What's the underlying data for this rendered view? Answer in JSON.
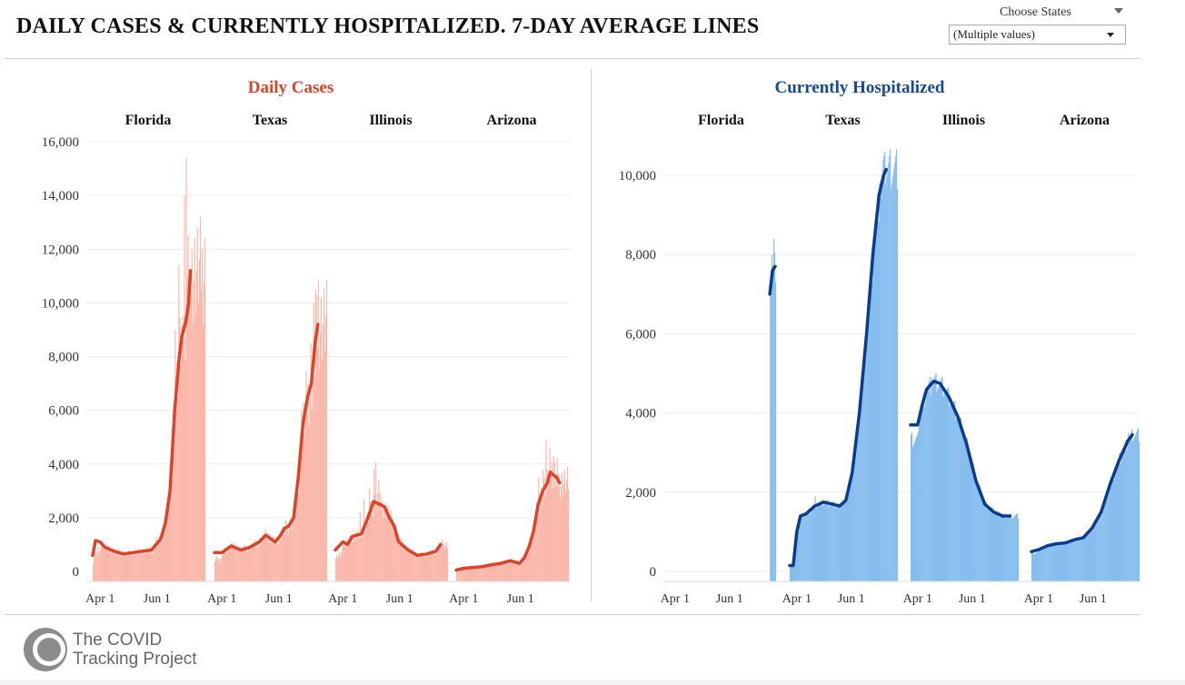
{
  "page": {
    "title": "DAILY CASES & CURRENTLY HOSPITALIZED. 7-DAY AVERAGE LINES"
  },
  "filter": {
    "label": "Choose States",
    "value": "(Multiple values)"
  },
  "footer": {
    "logo_line1": "The COVID",
    "logo_line2": "Tracking Project"
  },
  "colors": {
    "cases_title": "#d9442b",
    "cases_bar": "#f9b8aa",
    "cases_line": "#d9442b",
    "hosp_title": "#174a94",
    "hosp_bar": "#86bdee",
    "hosp_line": "#0b3b8c"
  },
  "chart_data": [
    {
      "type": "bar",
      "title": "Daily Cases",
      "facets": [
        "Florida",
        "Texas",
        "Illinois",
        "Arizona"
      ],
      "x_tick_labels": [
        "Apr 1",
        "Jun 1"
      ],
      "y_tick_labels": [
        "0",
        "2,000",
        "4,000",
        "6,000",
        "8,000",
        "10,000",
        "12,000",
        "14,000",
        "16,000"
      ],
      "y_ticks": [
        0,
        2000,
        4000,
        6000,
        8000,
        10000,
        12000,
        14000,
        16000
      ],
      "ylim": [
        0,
        16000
      ],
      "xlim_days": [
        -10,
        113
      ],
      "x_tick_days": [
        0,
        61
      ],
      "grid": true,
      "series": [
        {
          "name": "Florida",
          "days": [
            -8,
            112
          ],
          "line": [
            [
              -8,
              600
            ],
            [
              -5,
              1150
            ],
            [
              0,
              1100
            ],
            [
              5,
              900
            ],
            [
              15,
              750
            ],
            [
              25,
              650
            ],
            [
              35,
              700
            ],
            [
              45,
              750
            ],
            [
              55,
              800
            ],
            [
              60,
              1000
            ],
            [
              65,
              1200
            ],
            [
              70,
              1800
            ],
            [
              75,
              3000
            ],
            [
              80,
              6000
            ],
            [
              85,
              8000
            ],
            [
              88,
              8800
            ],
            [
              92,
              9300
            ],
            [
              95,
              10000
            ],
            [
              97,
              11200
            ]
          ],
          "daily": [
            [
              60,
              1300
            ],
            [
              70,
              2000
            ],
            [
              75,
              3500
            ],
            [
              80,
              9000
            ],
            [
              84,
              11400
            ],
            [
              88,
              9500
            ],
            [
              90,
              14000
            ],
            [
              92,
              15400
            ],
            [
              94,
              12500
            ],
            [
              96,
              10000
            ]
          ]
        },
        {
          "name": "Texas",
          "days": [
            -8,
            112
          ],
          "line": [
            [
              -8,
              700
            ],
            [
              0,
              700
            ],
            [
              10,
              950
            ],
            [
              20,
              800
            ],
            [
              30,
              900
            ],
            [
              40,
              1100
            ],
            [
              47,
              1350
            ],
            [
              53,
              1200
            ],
            [
              57,
              1100
            ],
            [
              62,
              1300
            ],
            [
              67,
              1600
            ],
            [
              72,
              1700
            ],
            [
              77,
              2000
            ],
            [
              82,
              3500
            ],
            [
              87,
              5500
            ],
            [
              92,
              6500
            ],
            [
              96,
              7000
            ],
            [
              100,
              8500
            ],
            [
              103,
              9200
            ]
          ],
          "daily": [
            [
              85,
              6000
            ],
            [
              90,
              7500
            ],
            [
              95,
              8500
            ],
            [
              98,
              10000
            ],
            [
              100,
              10500
            ],
            [
              103,
              10800
            ]
          ]
        },
        {
          "name": "Illinois",
          "days": [
            -8,
            112
          ],
          "line": [
            [
              -8,
              800
            ],
            [
              0,
              1100
            ],
            [
              5,
              1000
            ],
            [
              10,
              1300
            ],
            [
              20,
              1400
            ],
            [
              27,
              2000
            ],
            [
              33,
              2600
            ],
            [
              40,
              2500
            ],
            [
              45,
              2400
            ],
            [
              50,
              2000
            ],
            [
              55,
              1700
            ],
            [
              60,
              1100
            ],
            [
              70,
              800
            ],
            [
              80,
              600
            ],
            [
              90,
              650
            ],
            [
              100,
              750
            ],
            [
              105,
              1000
            ]
          ],
          "daily": [
            [
              18,
              2200
            ],
            [
              22,
              2700
            ],
            [
              28,
              3100
            ],
            [
              33,
              3800
            ],
            [
              35,
              4050
            ],
            [
              38,
              3400
            ],
            [
              45,
              2500
            ]
          ]
        },
        {
          "name": "Arizona",
          "days": [
            -8,
            112
          ],
          "line": [
            [
              -8,
              50
            ],
            [
              0,
              120
            ],
            [
              10,
              150
            ],
            [
              20,
              180
            ],
            [
              30,
              250
            ],
            [
              40,
              300
            ],
            [
              50,
              400
            ],
            [
              60,
              300
            ],
            [
              65,
              500
            ],
            [
              70,
              900
            ],
            [
              75,
              1500
            ],
            [
              80,
              2500
            ],
            [
              85,
              3000
            ],
            [
              90,
              3300
            ],
            [
              93,
              3700
            ],
            [
              96,
              3600
            ],
            [
              100,
              3500
            ],
            [
              103,
              3300
            ]
          ],
          "daily": [
            [
              80,
              3500
            ],
            [
              85,
              3800
            ],
            [
              88,
              4900
            ],
            [
              92,
              4600
            ],
            [
              96,
              4300
            ],
            [
              100,
              4200
            ]
          ]
        }
      ]
    },
    {
      "type": "bar",
      "title": "Currently Hospitalized",
      "facets": [
        "Florida",
        "Texas",
        "Illinois",
        "Arizona"
      ],
      "x_tick_labels": [
        "Apr 1",
        "Jun 1"
      ],
      "y_tick_labels": [
        "0",
        "2,000",
        "4,000",
        "6,000",
        "8,000",
        "10,000"
      ],
      "y_ticks": [
        0,
        2000,
        4000,
        6000,
        8000,
        10000
      ],
      "ylim": [
        0,
        11000
      ],
      "xlim_days": [
        -10,
        113
      ],
      "x_tick_days": [
        0,
        61
      ],
      "grid": true,
      "series": [
        {
          "name": "Florida",
          "days": [
            106,
            112
          ],
          "line": [
            [
              106,
              7000
            ],
            [
              109,
              7600
            ],
            [
              112,
              7700
            ]
          ],
          "daily": [
            [
              106,
              7000
            ],
            [
              108,
              8000
            ],
            [
              110,
              8400
            ]
          ]
        },
        {
          "name": "Texas",
          "days": [
            -8,
            112
          ],
          "line": [
            [
              -8,
              150
            ],
            [
              -4,
              150
            ],
            [
              0,
              1000
            ],
            [
              4,
              1400
            ],
            [
              10,
              1450
            ],
            [
              20,
              1650
            ],
            [
              30,
              1750
            ],
            [
              40,
              1700
            ],
            [
              48,
              1650
            ],
            [
              55,
              1800
            ],
            [
              62,
              2500
            ],
            [
              70,
              4000
            ],
            [
              78,
              6000
            ],
            [
              85,
              8000
            ],
            [
              92,
              9500
            ],
            [
              97,
              10000
            ],
            [
              100,
              10150
            ]
          ],
          "daily": [
            [
              20,
              1900
            ],
            [
              85,
              8200
            ],
            [
              92,
              9800
            ],
            [
              96,
              10400
            ],
            [
              98,
              10600
            ]
          ]
        },
        {
          "name": "Illinois",
          "days": [
            -8,
            112
          ],
          "line": [
            [
              -8,
              3700
            ],
            [
              0,
              3700
            ],
            [
              5,
              4200
            ],
            [
              10,
              4600
            ],
            [
              18,
              4800
            ],
            [
              25,
              4750
            ],
            [
              35,
              4400
            ],
            [
              45,
              3900
            ],
            [
              55,
              3200
            ],
            [
              65,
              2300
            ],
            [
              75,
              1700
            ],
            [
              85,
              1500
            ],
            [
              95,
              1400
            ],
            [
              103,
              1400
            ]
          ],
          "daily": [
            [
              15,
              4900
            ],
            [
              20,
              5000
            ],
            [
              25,
              4800
            ]
          ]
        },
        {
          "name": "Arizona",
          "days": [
            -8,
            112
          ],
          "line": [
            [
              -8,
              500
            ],
            [
              0,
              550
            ],
            [
              10,
              650
            ],
            [
              20,
              700
            ],
            [
              30,
              720
            ],
            [
              40,
              800
            ],
            [
              50,
              850
            ],
            [
              60,
              1100
            ],
            [
              70,
              1500
            ],
            [
              80,
              2200
            ],
            [
              90,
              2800
            ],
            [
              100,
              3300
            ],
            [
              105,
              3450
            ]
          ],
          "daily": [
            [
              90,
              3000
            ],
            [
              100,
              3500
            ]
          ]
        }
      ]
    }
  ]
}
